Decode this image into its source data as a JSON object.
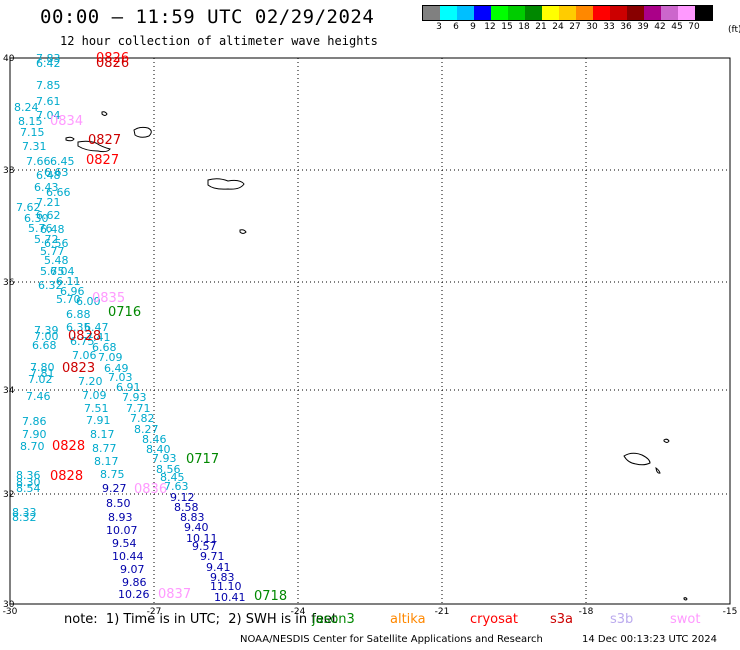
{
  "title": "00:00 – 11:59 UTC 02/29/2024",
  "subtitle": "12 hour collection of altimeter wave heights",
  "legend": {
    "unit": "(ft)",
    "bins": [
      {
        "label": "3",
        "color": "#808080"
      },
      {
        "label": "6",
        "color": "#00ffff"
      },
      {
        "label": "9",
        "color": "#00bfff"
      },
      {
        "label": "12",
        "color": "#0000ff"
      },
      {
        "label": "15",
        "color": "#00ff00"
      },
      {
        "label": "18",
        "color": "#00cc00"
      },
      {
        "label": "21",
        "color": "#008800"
      },
      {
        "label": "24",
        "color": "#ffff00"
      },
      {
        "label": "27",
        "color": "#ffcc00"
      },
      {
        "label": "30",
        "color": "#ff8800"
      },
      {
        "label": "33",
        "color": "#ff0000"
      },
      {
        "label": "36",
        "color": "#cc0000"
      },
      {
        "label": "39",
        "color": "#880000"
      },
      {
        "label": "42",
        "color": "#aa0088"
      },
      {
        "label": "45",
        "color": "#cc66cc"
      },
      {
        "label": "70",
        "color": "#ff99ff"
      },
      {
        "label": "",
        "color": "#000000"
      }
    ]
  },
  "axes": {
    "lat_labels": [
      "40",
      "38",
      "36",
      "34",
      "32",
      "30"
    ],
    "lon_labels": [
      "-30",
      "-27",
      "-24",
      "-21",
      "-18",
      "-15"
    ]
  },
  "note": "note:  1) Time is in UTC;  2) SWH is in feet",
  "satellites": [
    {
      "name": "jason3",
      "color": "#008800"
    },
    {
      "name": "altika",
      "color": "#ff8800"
    },
    {
      "name": "cryosat",
      "color": "#ff0000"
    },
    {
      "name": "s3a",
      "color": "#cc0000"
    },
    {
      "name": "s3b",
      "color": "#bbaaee"
    },
    {
      "name": "swot",
      "color": "#ff99ff"
    }
  ],
  "credit": "NOAA/NESDIS Center for Satellite Applications and Research",
  "timestamp": "14 Dec 00:13:23 UTC 2024",
  "tracks": [
    {
      "name": "track-west",
      "color": "#00aacc",
      "values": [
        "7.83",
        "6.42",
        "7.85",
        "7.61",
        "8.24",
        "7.04",
        "8.15",
        "7.15",
        "7.31",
        "7.66",
        "6.45",
        "6.63",
        "6.48",
        "6.43",
        "6.66",
        "7.21",
        "7.62",
        "6.30",
        "6.62",
        "5.76",
        "6.48",
        "5.72",
        "6.56",
        "5.77",
        "5.48",
        "5.75",
        "6.04",
        "6.32",
        "6.11",
        "6.96",
        "5.70",
        "6.00",
        "6.88",
        "6.35",
        "7.39",
        "6.47",
        "7.00",
        "7.41",
        "6.68",
        "6.75",
        "6.68",
        "7.06",
        "7.09",
        "7.80",
        "6.49",
        "7.81",
        "7.02",
        "7.03",
        "7.20",
        "6.91",
        "7.46",
        "7.09",
        "7.93",
        "7.51",
        "7.71",
        "7.86",
        "7.91",
        "7.82",
        "7.90",
        "8.17",
        "8.27",
        "8.70",
        "8.77",
        "8.46",
        "8.17",
        "8.40",
        "7.93",
        "8.36",
        "8.75",
        "8.56",
        "8.30",
        "7.63",
        "8.54",
        "8.45",
        "8.33",
        "8.32"
      ]
    },
    {
      "name": "track-blue",
      "color": "#0000aa",
      "values": [
        "9.27",
        "9.12",
        "8.50",
        "8.58",
        "8.93",
        "8.83",
        "10.07",
        "9.40",
        "9.54",
        "10.11",
        "10.44",
        "9.57",
        "9.07",
        "9.71",
        "9.86",
        "9.41",
        "10.26",
        "9.83",
        "11.10",
        "10.41"
      ]
    },
    {
      "name": "pass-labels",
      "values": [
        {
          "text": "0826",
          "color": "#ff0000"
        },
        {
          "text": "0826",
          "color": "#cc0000"
        },
        {
          "text": "0834",
          "color": "#ff99ff"
        },
        {
          "text": "0827",
          "color": "#cc0000"
        },
        {
          "text": "0827",
          "color": "#ff0000"
        },
        {
          "text": "0835",
          "color": "#ff99ff"
        },
        {
          "text": "0716",
          "color": "#008800"
        },
        {
          "text": "0828",
          "color": "#cc0000"
        },
        {
          "text": "0823",
          "color": "#cc0000"
        },
        {
          "text": "0828",
          "color": "#ff0000"
        },
        {
          "text": "0828",
          "color": "#ff0000"
        },
        {
          "text": "0717",
          "color": "#008800"
        },
        {
          "text": "0836",
          "color": "#ff99ff"
        },
        {
          "text": "0837",
          "color": "#ff99ff"
        },
        {
          "text": "0718",
          "color": "#008800"
        }
      ]
    }
  ]
}
